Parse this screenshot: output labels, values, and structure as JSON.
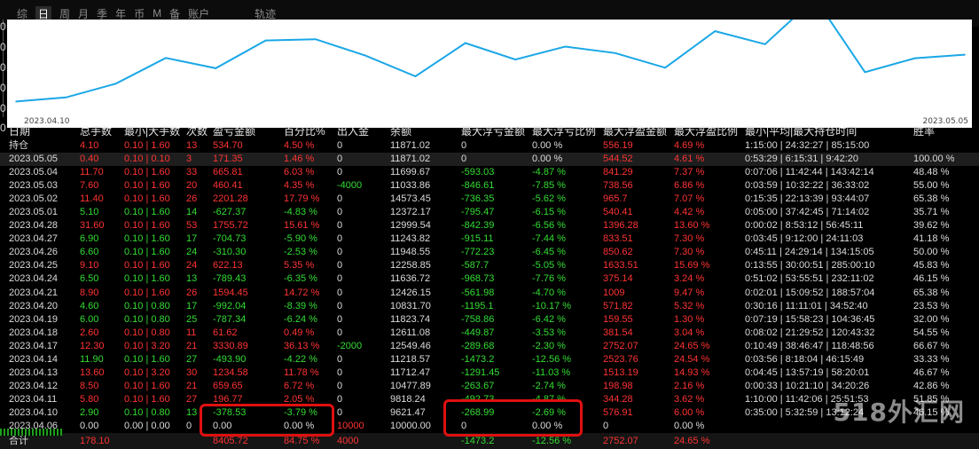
{
  "tabs": [
    {
      "label": "综",
      "active": false
    },
    {
      "label": "日",
      "active": true
    },
    {
      "label": "周",
      "active": false
    },
    {
      "label": "月",
      "active": false
    },
    {
      "label": "季",
      "active": false
    },
    {
      "label": "年",
      "active": false
    },
    {
      "label": "币",
      "active": false
    },
    {
      "label": "M",
      "active": false
    },
    {
      "label": "备",
      "active": false
    },
    {
      "label": "账户",
      "active": false
    },
    {
      "label": "轨迹",
      "active": false
    }
  ],
  "left_ticks": [
    "0",
    "0",
    "0",
    "0",
    "0",
    "0"
  ],
  "chart_data": {
    "type": "line",
    "title": "",
    "xlabel": "",
    "ylabel": "",
    "x_start_label": "2023.04.10",
    "x_end_label": "2023.05.05",
    "x": [
      "2023.04.10",
      "2023.04.11",
      "2023.04.12",
      "2023.04.13",
      "2023.04.14",
      "2023.04.17",
      "2023.04.18",
      "2023.04.19",
      "2023.04.20",
      "2023.04.21",
      "2023.04.24",
      "2023.04.25",
      "2023.04.26",
      "2023.04.27",
      "2023.04.28",
      "2023.05.01",
      "2023.05.02",
      "2023.05.03",
      "2023.05.04",
      "2023.05.05"
    ],
    "values": [
      9621.47,
      9818.24,
      10477.89,
      11712.47,
      11218.57,
      12549.46,
      12611.08,
      11823.74,
      10831.7,
      12426.15,
      11636.72,
      12258.85,
      11948.55,
      11243.82,
      12999.54,
      12372.17,
      14573.45,
      11033.86,
      11699.67,
      11871.02
    ],
    "ylim": [
      9300,
      13300
    ],
    "line_color": "#1aa7e6",
    "background": "#ffffff",
    "grid": false
  },
  "columns": [
    "日期",
    "总手数",
    "最小|大手数",
    "次数",
    "盈亏金额",
    "百分比%",
    "出入金",
    "余额",
    "最大浮亏金额",
    "最大浮亏比例",
    "最大浮盈金额",
    "最大浮盈比例",
    "最小|平均|最大持仓时间",
    "胜率"
  ],
  "hold_row": {
    "date": "持仓",
    "lots": "4.10",
    "minmax": "0.10 | 1.60",
    "count": "13",
    "pnl": "534.70",
    "pct": "4.50 %",
    "io": "0",
    "bal": "11871.02",
    "mfl": "0",
    "mflp": "0.00 %",
    "mfp": "556.19",
    "mfpp": "4.69 %",
    "time": "1:15:00 | 24:32:27 | 85:15:00",
    "win": ""
  },
  "rows": [
    {
      "date": "2023.05.05",
      "lots": "0.40",
      "minmax": "0.10 | 0.10",
      "count": "3",
      "pnl": "171.35",
      "pct": "1.46 %",
      "io": "0",
      "bal": "11871.02",
      "mfl": "0",
      "mflp": "0.00 %",
      "mfp": "544.52",
      "mfpp": "4.61 %",
      "time": "0:53:29 | 6:15:31 | 9:42:20",
      "win": "100.00 %",
      "neg": false
    },
    {
      "date": "2023.05.04",
      "lots": "11.70",
      "minmax": "0.10 | 1.60",
      "count": "33",
      "pnl": "665.81",
      "pct": "6.03 %",
      "io": "0",
      "bal": "11699.67",
      "mfl": "-593.03",
      "mflp": "-4.87 %",
      "mfp": "841.29",
      "mfpp": "7.37 %",
      "time": "0:07:06 | 11:42:44 | 143:42:14",
      "win": "48.48 %",
      "neg": false
    },
    {
      "date": "2023.05.03",
      "lots": "7.60",
      "minmax": "0.10 | 1.60",
      "count": "20",
      "pnl": "460.41",
      "pct": "4.35 %",
      "io": "-4000",
      "bal": "11033.86",
      "mfl": "-846.61",
      "mflp": "-7.85 %",
      "mfp": "738.56",
      "mfpp": "6.86 %",
      "time": "0:03:59 | 10:32:22 | 36:33:02",
      "win": "55.00 %",
      "neg": false
    },
    {
      "date": "2023.05.02",
      "lots": "11.40",
      "minmax": "0.10 | 1.60",
      "count": "26",
      "pnl": "2201.28",
      "pct": "17.79 %",
      "io": "0",
      "bal": "14573.45",
      "mfl": "-736.35",
      "mflp": "-5.62 %",
      "mfp": "965.7",
      "mfpp": "7.07 %",
      "time": "0:15:35 | 22:13:39 | 93:44:07",
      "win": "65.38 %",
      "neg": false
    },
    {
      "date": "2023.05.01",
      "lots": "5.10",
      "minmax": "0.10 | 1.60",
      "count": "14",
      "pnl": "-627.37",
      "pct": "-4.83 %",
      "io": "0",
      "bal": "12372.17",
      "mfl": "-795.47",
      "mflp": "-6.15 %",
      "mfp": "540.41",
      "mfpp": "4.42 %",
      "time": "0:05:00 | 37:42:45 | 71:14:02",
      "win": "35.71 %",
      "neg": true
    },
    {
      "date": "2023.04.28",
      "lots": "31.60",
      "minmax": "0.10 | 1.60",
      "count": "53",
      "pnl": "1755.72",
      "pct": "15.61 %",
      "io": "0",
      "bal": "12999.54",
      "mfl": "-842.39",
      "mflp": "-6.56 %",
      "mfp": "1396.28",
      "mfpp": "13.60 %",
      "time": "0:00:02 | 8:53:12 | 56:45:11",
      "win": "39.62 %",
      "neg": false
    },
    {
      "date": "2023.04.27",
      "lots": "6.90",
      "minmax": "0.10 | 1.60",
      "count": "17",
      "pnl": "-704.73",
      "pct": "-5.90 %",
      "io": "0",
      "bal": "11243.82",
      "mfl": "-915.11",
      "mflp": "-7.44 %",
      "mfp": "833.51",
      "mfpp": "7.30 %",
      "time": "0:03:45 | 9:12:00 | 24:11:03",
      "win": "41.18 %",
      "neg": true
    },
    {
      "date": "2023.04.26",
      "lots": "6.60",
      "minmax": "0.10 | 1.60",
      "count": "24",
      "pnl": "-310.30",
      "pct": "-2.53 %",
      "io": "0",
      "bal": "11948.55",
      "mfl": "-772.23",
      "mflp": "-6.45 %",
      "mfp": "850.62",
      "mfpp": "7.30 %",
      "time": "0:45:11 | 24:29:14 | 134:15:05",
      "win": "50.00 %",
      "neg": true
    },
    {
      "date": "2023.04.25",
      "lots": "9.10",
      "minmax": "0.10 | 1.60",
      "count": "24",
      "pnl": "622.13",
      "pct": "5.35 %",
      "io": "0",
      "bal": "12258.85",
      "mfl": "-587.7",
      "mflp": "-5.05 %",
      "mfp": "1633.51",
      "mfpp": "15.69 %",
      "time": "0:13:55 | 30:00:51 | 285:00:10",
      "win": "45.83 %",
      "neg": false
    },
    {
      "date": "2023.04.24",
      "lots": "6.50",
      "minmax": "0.10 | 1.60",
      "count": "13",
      "pnl": "-789.43",
      "pct": "-6.35 %",
      "io": "0",
      "bal": "11636.72",
      "mfl": "-968.73",
      "mflp": "-7.76 %",
      "mfp": "375.14",
      "mfpp": "3.24 %",
      "time": "0:51:02 | 53:55:51 | 232:11:02",
      "win": "46.15 %",
      "neg": true
    },
    {
      "date": "2023.04.21",
      "lots": "8.90",
      "minmax": "0.10 | 1.60",
      "count": "26",
      "pnl": "1594.45",
      "pct": "14.72 %",
      "io": "0",
      "bal": "12426.15",
      "mfl": "-561.98",
      "mflp": "-4.70 %",
      "mfp": "1009",
      "mfpp": "9.47 %",
      "time": "0:02:01 | 15:09:52 | 188:57:04",
      "win": "65.38 %",
      "neg": false
    },
    {
      "date": "2023.04.20",
      "lots": "4.60",
      "minmax": "0.10 | 0.80",
      "count": "17",
      "pnl": "-992.04",
      "pct": "-8.39 %",
      "io": "0",
      "bal": "10831.70",
      "mfl": "-1195.1",
      "mflp": "-10.17 %",
      "mfp": "571.82",
      "mfpp": "5.32 %",
      "time": "0:30:16 | 11:11:01 | 34:52:40",
      "win": "23.53 %",
      "neg": true
    },
    {
      "date": "2023.04.19",
      "lots": "6.00",
      "minmax": "0.10 | 0.80",
      "count": "25",
      "pnl": "-787.34",
      "pct": "-6.24 %",
      "io": "0",
      "bal": "11823.74",
      "mfl": "-758.86",
      "mflp": "-6.42 %",
      "mfp": "159.55",
      "mfpp": "1.30 %",
      "time": "0:07:19 | 15:58:23 | 104:36:45",
      "win": "32.00 %",
      "neg": true
    },
    {
      "date": "2023.04.18",
      "lots": "2.60",
      "minmax": "0.10 | 0.80",
      "count": "11",
      "pnl": "61.62",
      "pct": "0.49 %",
      "io": "0",
      "bal": "12611.08",
      "mfl": "-449.87",
      "mflp": "-3.53 %",
      "mfp": "381.54",
      "mfpp": "3.04 %",
      "time": "0:08:02 | 21:29:52 | 120:43:32",
      "win": "54.55 %",
      "neg": false
    },
    {
      "date": "2023.04.17",
      "lots": "12.30",
      "minmax": "0.10 | 3.20",
      "count": "21",
      "pnl": "3330.89",
      "pct": "36.13 %",
      "io": "-2000",
      "bal": "12549.46",
      "mfl": "-289.68",
      "mflp": "-2.30 %",
      "mfp": "2752.07",
      "mfpp": "24.65 %",
      "time": "0:10:49 | 38:46:47 | 118:48:56",
      "win": "66.67 %",
      "neg": false
    },
    {
      "date": "2023.04.14",
      "lots": "11.90",
      "minmax": "0.10 | 1.60",
      "count": "27",
      "pnl": "-493.90",
      "pct": "-4.22 %",
      "io": "0",
      "bal": "11218.57",
      "mfl": "-1473.2",
      "mflp": "-12.56 %",
      "mfp": "2523.76",
      "mfpp": "24.54 %",
      "time": "0:03:56 | 8:18:04 | 46:15:49",
      "win": "33.33 %",
      "neg": true
    },
    {
      "date": "2023.04.13",
      "lots": "13.60",
      "minmax": "0.10 | 3.20",
      "count": "30",
      "pnl": "1234.58",
      "pct": "11.78 %",
      "io": "0",
      "bal": "11712.47",
      "mfl": "-1291.45",
      "mflp": "-11.03 %",
      "mfp": "1513.19",
      "mfpp": "14.93 %",
      "time": "0:04:45 | 13:57:19 | 58:20:01",
      "win": "46.67 %",
      "neg": false
    },
    {
      "date": "2023.04.12",
      "lots": "8.50",
      "minmax": "0.10 | 1.60",
      "count": "21",
      "pnl": "659.65",
      "pct": "6.72 %",
      "io": "0",
      "bal": "10477.89",
      "mfl": "-263.67",
      "mflp": "-2.74 %",
      "mfp": "198.98",
      "mfpp": "2.16 %",
      "time": "0:00:33 | 10:21:10 | 34:20:26",
      "win": "42.86 %",
      "neg": false
    },
    {
      "date": "2023.04.11",
      "lots": "5.80",
      "minmax": "0.10 | 1.60",
      "count": "27",
      "pnl": "196.77",
      "pct": "2.05 %",
      "io": "0",
      "bal": "9818.24",
      "mfl": "-492.73",
      "mflp": "-4.87 %",
      "mfp": "344.28",
      "mfpp": "3.62 %",
      "time": "1:10:00 | 11:42:06 | 25:51:53",
      "win": "51.85 %",
      "neg": false
    },
    {
      "date": "2023.04.10",
      "lots": "2.90",
      "minmax": "0.10 | 0.80",
      "count": "13",
      "pnl": "-378.53",
      "pct": "-3.79 %",
      "io": "0",
      "bal": "9621.47",
      "mfl": "-268.99",
      "mflp": "-2.69 %",
      "mfp": "576.91",
      "mfpp": "6.00 %",
      "time": "0:35:00 | 5:32:59 | 13:12:24",
      "win": "46.15 %",
      "neg": true
    },
    {
      "date": "2023.04.06",
      "lots": "0.00",
      "minmax": "0.00 | 0.00",
      "count": "0",
      "pnl": "0.00",
      "pct": "0.00 %",
      "io": "10000",
      "bal": "10000.00",
      "mfl": "0",
      "mflp": "0.00 %",
      "mfp": "0",
      "mfpp": "0.00 %",
      "time": "",
      "win": "",
      "neg": false,
      "zero": true
    }
  ],
  "total_row": {
    "label": "合计",
    "lots": "178.10",
    "pnl": "8405.72",
    "pct": "84.75 %",
    "io": "4000",
    "mfl": "-1473.2",
    "mflp": "-12.56 %",
    "mfp": "2752.07",
    "mfpp": "24.65 %"
  },
  "watermark": "518外汇网",
  "colors": {
    "profit": "#ff3333",
    "loss": "#33dd33",
    "highlight": "#e01010"
  }
}
